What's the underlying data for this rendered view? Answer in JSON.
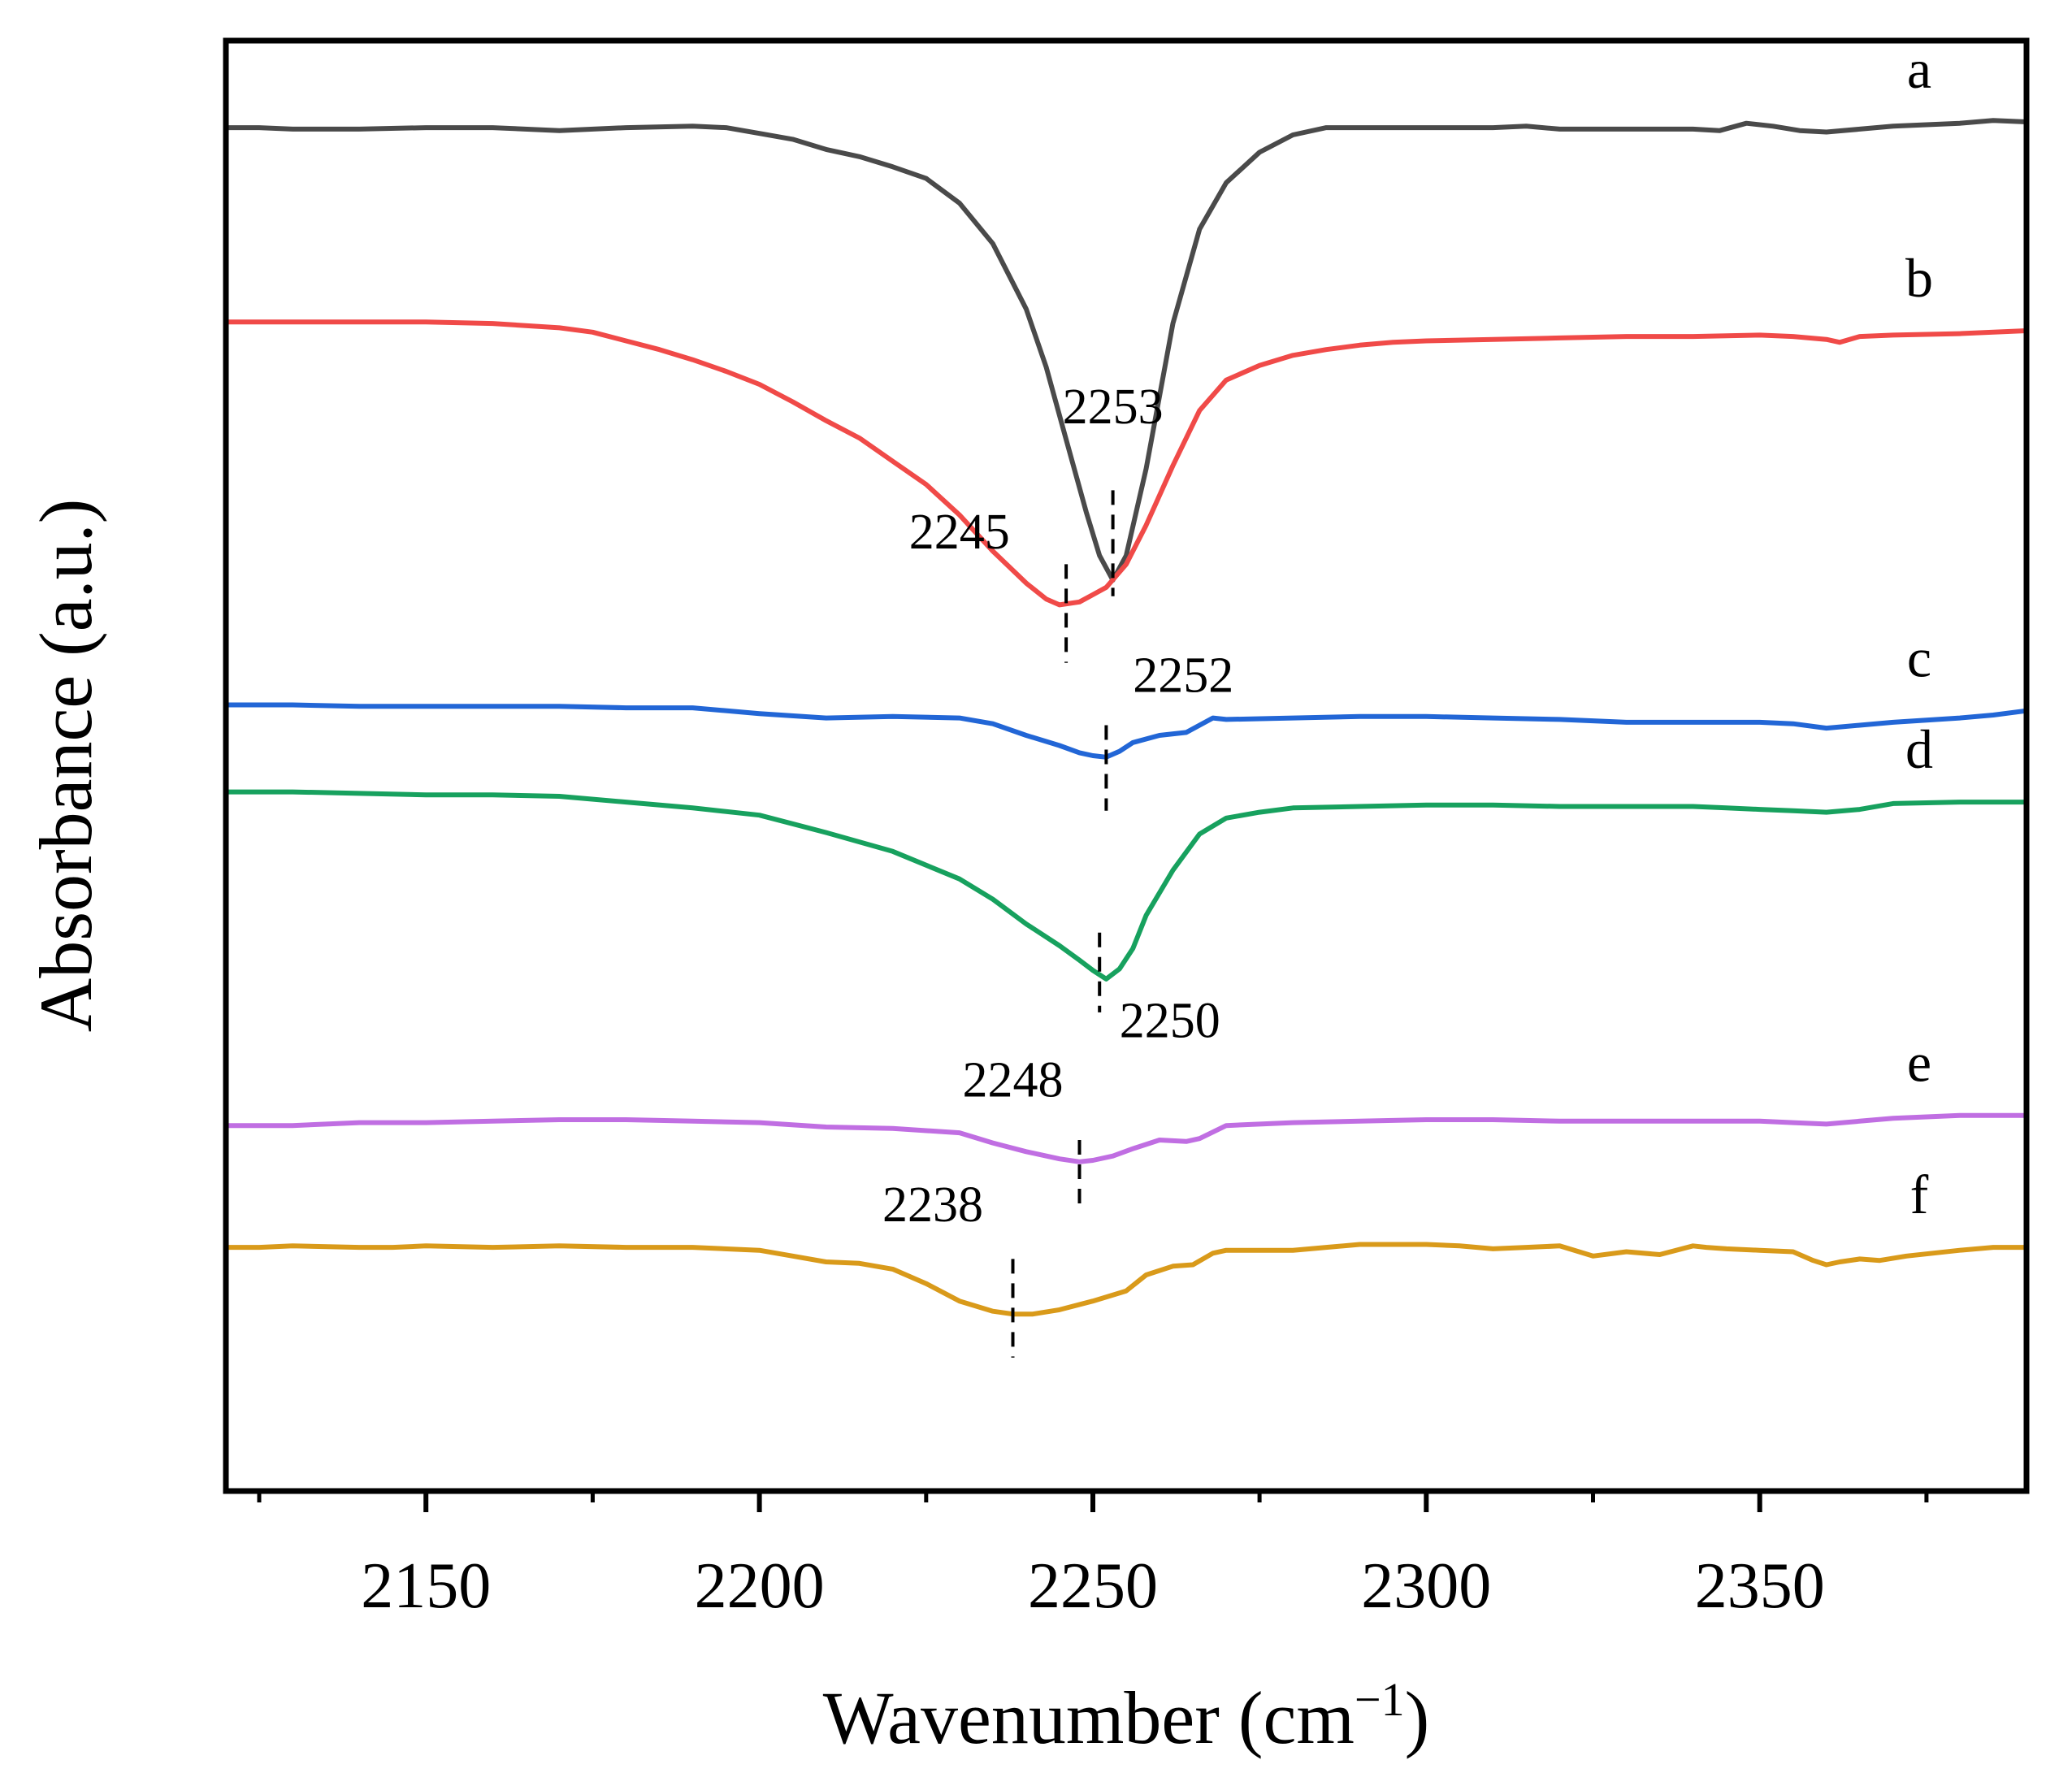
{
  "chart_data": {
    "type": "line",
    "title": "",
    "xlabel": "Wavenumber (cm",
    "xlabel_sup": "−1",
    "xlabel_close": ")",
    "ylabel": "Absorbance (a.u.)",
    "xlim": [
      2120,
      2390
    ],
    "ylim": [
      0,
      100
    ],
    "x_ticks": [
      2150,
      2200,
      2250,
      2300,
      2350
    ],
    "x_tick_labels": [
      "2150",
      "2200",
      "2250",
      "2300",
      "2350"
    ],
    "x_minor_ticks": [
      2125,
      2175,
      2225,
      2275,
      2325,
      2375
    ],
    "grid": false,
    "series": [
      {
        "name": "a",
        "color": "#4a4a4a",
        "points": [
          [
            2120,
            94.0
          ],
          [
            2125,
            94.0
          ],
          [
            2130,
            93.9
          ],
          [
            2140,
            93.9
          ],
          [
            2150,
            94.0
          ],
          [
            2160,
            94.0
          ],
          [
            2170,
            93.8
          ],
          [
            2180,
            94.0
          ],
          [
            2190,
            94.1
          ],
          [
            2195,
            94.0
          ],
          [
            2200,
            93.6
          ],
          [
            2205,
            93.2
          ],
          [
            2210,
            92.5
          ],
          [
            2215,
            92.0
          ],
          [
            2220,
            91.3
          ],
          [
            2225,
            90.5
          ],
          [
            2230,
            88.8
          ],
          [
            2235,
            86.0
          ],
          [
            2240,
            81.5
          ],
          [
            2243,
            77.5
          ],
          [
            2246,
            72.5
          ],
          [
            2249,
            67.5
          ],
          [
            2251,
            64.5
          ],
          [
            2253,
            62.8
          ],
          [
            2255,
            64.5
          ],
          [
            2258,
            70.5
          ],
          [
            2262,
            80.5
          ],
          [
            2266,
            87.0
          ],
          [
            2270,
            90.2
          ],
          [
            2275,
            92.3
          ],
          [
            2280,
            93.5
          ],
          [
            2285,
            94.0
          ],
          [
            2300,
            94.0
          ],
          [
            2310,
            94.0
          ],
          [
            2315,
            94.1
          ],
          [
            2320,
            93.9
          ],
          [
            2330,
            93.9
          ],
          [
            2340,
            93.9
          ],
          [
            2344,
            93.8
          ],
          [
            2348,
            94.3
          ],
          [
            2352,
            94.1
          ],
          [
            2356,
            93.8
          ],
          [
            2360,
            93.7
          ],
          [
            2365,
            93.9
          ],
          [
            2370,
            94.1
          ],
          [
            2375,
            94.2
          ],
          [
            2380,
            94.3
          ],
          [
            2385,
            94.5
          ],
          [
            2390,
            94.4
          ]
        ]
      },
      {
        "name": "b",
        "color": "#f04a48",
        "points": [
          [
            2120,
            80.6
          ],
          [
            2130,
            80.6
          ],
          [
            2140,
            80.6
          ],
          [
            2150,
            80.6
          ],
          [
            2160,
            80.5
          ],
          [
            2170,
            80.2
          ],
          [
            2175,
            79.9
          ],
          [
            2180,
            79.3
          ],
          [
            2185,
            78.7
          ],
          [
            2190,
            78.0
          ],
          [
            2195,
            77.2
          ],
          [
            2200,
            76.3
          ],
          [
            2205,
            75.1
          ],
          [
            2210,
            73.8
          ],
          [
            2215,
            72.6
          ],
          [
            2220,
            71.0
          ],
          [
            2225,
            69.4
          ],
          [
            2230,
            67.3
          ],
          [
            2235,
            64.8
          ],
          [
            2240,
            62.6
          ],
          [
            2243,
            61.5
          ],
          [
            2245,
            61.1
          ],
          [
            2248,
            61.3
          ],
          [
            2250,
            61.8
          ],
          [
            2252,
            62.3
          ],
          [
            2255,
            63.9
          ],
          [
            2258,
            66.6
          ],
          [
            2262,
            70.7
          ],
          [
            2266,
            74.5
          ],
          [
            2270,
            76.6
          ],
          [
            2275,
            77.6
          ],
          [
            2280,
            78.3
          ],
          [
            2285,
            78.7
          ],
          [
            2290,
            79.0
          ],
          [
            2295,
            79.2
          ],
          [
            2300,
            79.3
          ],
          [
            2310,
            79.4
          ],
          [
            2320,
            79.5
          ],
          [
            2330,
            79.6
          ],
          [
            2340,
            79.6
          ],
          [
            2350,
            79.7
          ],
          [
            2355,
            79.6
          ],
          [
            2360,
            79.4
          ],
          [
            2362,
            79.2
          ],
          [
            2365,
            79.6
          ],
          [
            2370,
            79.7
          ],
          [
            2380,
            79.8
          ],
          [
            2390,
            80.0
          ]
        ]
      },
      {
        "name": "c",
        "color": "#2266d6",
        "points": [
          [
            2120,
            54.2
          ],
          [
            2130,
            54.2
          ],
          [
            2140,
            54.1
          ],
          [
            2150,
            54.1
          ],
          [
            2160,
            54.1
          ],
          [
            2170,
            54.1
          ],
          [
            2180,
            54.0
          ],
          [
            2190,
            54.0
          ],
          [
            2200,
            53.6
          ],
          [
            2210,
            53.3
          ],
          [
            2220,
            53.4
          ],
          [
            2230,
            53.3
          ],
          [
            2235,
            52.9
          ],
          [
            2240,
            52.1
          ],
          [
            2245,
            51.4
          ],
          [
            2248,
            50.9
          ],
          [
            2250,
            50.7
          ],
          [
            2252,
            50.6
          ],
          [
            2254,
            51.0
          ],
          [
            2256,
            51.6
          ],
          [
            2260,
            52.1
          ],
          [
            2264,
            52.3
          ],
          [
            2266,
            52.8
          ],
          [
            2268,
            53.3
          ],
          [
            2270,
            53.2
          ],
          [
            2280,
            53.3
          ],
          [
            2290,
            53.4
          ],
          [
            2300,
            53.4
          ],
          [
            2310,
            53.3
          ],
          [
            2320,
            53.2
          ],
          [
            2330,
            53.0
          ],
          [
            2340,
            53.0
          ],
          [
            2350,
            53.0
          ],
          [
            2355,
            52.9
          ],
          [
            2360,
            52.6
          ],
          [
            2365,
            52.8
          ],
          [
            2370,
            53.0
          ],
          [
            2380,
            53.3
          ],
          [
            2385,
            53.5
          ],
          [
            2390,
            53.8
          ]
        ]
      },
      {
        "name": "d",
        "color": "#17a15e",
        "points": [
          [
            2120,
            48.2
          ],
          [
            2130,
            48.2
          ],
          [
            2140,
            48.1
          ],
          [
            2150,
            48.0
          ],
          [
            2160,
            48.0
          ],
          [
            2170,
            47.9
          ],
          [
            2180,
            47.5
          ],
          [
            2190,
            47.1
          ],
          [
            2200,
            46.6
          ],
          [
            2210,
            45.4
          ],
          [
            2220,
            44.1
          ],
          [
            2230,
            42.2
          ],
          [
            2235,
            40.8
          ],
          [
            2240,
            39.1
          ],
          [
            2245,
            37.6
          ],
          [
            2248,
            36.6
          ],
          [
            2250,
            35.9
          ],
          [
            2252,
            35.3
          ],
          [
            2254,
            36.0
          ],
          [
            2256,
            37.4
          ],
          [
            2258,
            39.7
          ],
          [
            2262,
            42.8
          ],
          [
            2266,
            45.3
          ],
          [
            2270,
            46.4
          ],
          [
            2275,
            46.8
          ],
          [
            2280,
            47.1
          ],
          [
            2290,
            47.2
          ],
          [
            2300,
            47.3
          ],
          [
            2310,
            47.3
          ],
          [
            2320,
            47.2
          ],
          [
            2330,
            47.2
          ],
          [
            2340,
            47.2
          ],
          [
            2345,
            47.1
          ],
          [
            2350,
            47.0
          ],
          [
            2355,
            46.9
          ],
          [
            2360,
            46.8
          ],
          [
            2365,
            47.0
          ],
          [
            2370,
            47.4
          ],
          [
            2380,
            47.5
          ],
          [
            2390,
            47.5
          ]
        ]
      },
      {
        "name": "e",
        "color": "#c06ee2",
        "points": [
          [
            2120,
            25.2
          ],
          [
            2130,
            25.2
          ],
          [
            2140,
            25.4
          ],
          [
            2150,
            25.4
          ],
          [
            2160,
            25.5
          ],
          [
            2170,
            25.6
          ],
          [
            2180,
            25.6
          ],
          [
            2190,
            25.5
          ],
          [
            2200,
            25.4
          ],
          [
            2210,
            25.1
          ],
          [
            2220,
            25.0
          ],
          [
            2230,
            24.7
          ],
          [
            2235,
            24.0
          ],
          [
            2240,
            23.4
          ],
          [
            2245,
            22.9
          ],
          [
            2248,
            22.7
          ],
          [
            2250,
            22.8
          ],
          [
            2253,
            23.1
          ],
          [
            2256,
            23.6
          ],
          [
            2260,
            24.2
          ],
          [
            2264,
            24.1
          ],
          [
            2266,
            24.3
          ],
          [
            2270,
            25.2
          ],
          [
            2280,
            25.4
          ],
          [
            2290,
            25.5
          ],
          [
            2300,
            25.6
          ],
          [
            2310,
            25.6
          ],
          [
            2320,
            25.5
          ],
          [
            2330,
            25.5
          ],
          [
            2340,
            25.5
          ],
          [
            2350,
            25.5
          ],
          [
            2355,
            25.4
          ],
          [
            2360,
            25.3
          ],
          [
            2365,
            25.5
          ],
          [
            2370,
            25.7
          ],
          [
            2380,
            25.9
          ],
          [
            2390,
            25.9
          ]
        ]
      },
      {
        "name": "f",
        "color": "#d99a1a",
        "points": [
          [
            2120,
            16.8
          ],
          [
            2125,
            16.8
          ],
          [
            2130,
            16.9
          ],
          [
            2140,
            16.8
          ],
          [
            2145,
            16.8
          ],
          [
            2150,
            16.9
          ],
          [
            2160,
            16.8
          ],
          [
            2170,
            16.9
          ],
          [
            2180,
            16.8
          ],
          [
            2190,
            16.8
          ],
          [
            2200,
            16.6
          ],
          [
            2205,
            16.2
          ],
          [
            2210,
            15.8
          ],
          [
            2215,
            15.7
          ],
          [
            2220,
            15.3
          ],
          [
            2225,
            14.3
          ],
          [
            2230,
            13.1
          ],
          [
            2235,
            12.4
          ],
          [
            2238,
            12.2
          ],
          [
            2241,
            12.2
          ],
          [
            2245,
            12.5
          ],
          [
            2250,
            13.1
          ],
          [
            2255,
            13.8
          ],
          [
            2258,
            14.9
          ],
          [
            2262,
            15.5
          ],
          [
            2265,
            15.6
          ],
          [
            2268,
            16.4
          ],
          [
            2270,
            16.6
          ],
          [
            2280,
            16.6
          ],
          [
            2285,
            16.8
          ],
          [
            2290,
            17.0
          ],
          [
            2300,
            17.0
          ],
          [
            2305,
            16.9
          ],
          [
            2310,
            16.7
          ],
          [
            2315,
            16.8
          ],
          [
            2320,
            16.9
          ],
          [
            2325,
            16.2
          ],
          [
            2330,
            16.5
          ],
          [
            2335,
            16.3
          ],
          [
            2340,
            16.9
          ],
          [
            2342,
            16.8
          ],
          [
            2345,
            16.7
          ],
          [
            2350,
            16.6
          ],
          [
            2355,
            16.5
          ],
          [
            2358,
            15.9
          ],
          [
            2360,
            15.6
          ],
          [
            2362,
            15.8
          ],
          [
            2365,
            16.0
          ],
          [
            2368,
            15.9
          ],
          [
            2372,
            16.2
          ],
          [
            2380,
            16.6
          ],
          [
            2385,
            16.8
          ],
          [
            2390,
            16.8
          ]
        ]
      }
    ],
    "peak_annotations": [
      {
        "label": "2253",
        "x": 2253,
        "y_top": 69.0,
        "y_bottom": 61.7,
        "label_x": 2253,
        "label_y": 73.6,
        "anchor": "middle"
      },
      {
        "label": "2245",
        "x": 2246,
        "y_top": 63.9,
        "y_bottom": 57.1,
        "label_x": 2230,
        "label_y": 65.0,
        "anchor": "middle"
      },
      {
        "label": "2252",
        "x": 2252,
        "y_top": 52.8,
        "y_bottom": 46.9,
        "label_x": 2256,
        "label_y": 55.1,
        "anchor": "start"
      },
      {
        "label": "2250",
        "x": 2251,
        "y_top": 38.5,
        "y_bottom": 33.0,
        "label_x": 2254,
        "label_y": 31.3,
        "anchor": "start"
      },
      {
        "label": "2248",
        "x": 2248,
        "y_top": 24.2,
        "y_bottom": 19.8,
        "label_x": 2238,
        "label_y": 27.2,
        "anchor": "middle"
      },
      {
        "label": "2238",
        "x": 2238,
        "y_top": 16.0,
        "y_bottom": 9.2,
        "label_x": 2226,
        "label_y": 18.6,
        "anchor": "middle"
      }
    ]
  }
}
